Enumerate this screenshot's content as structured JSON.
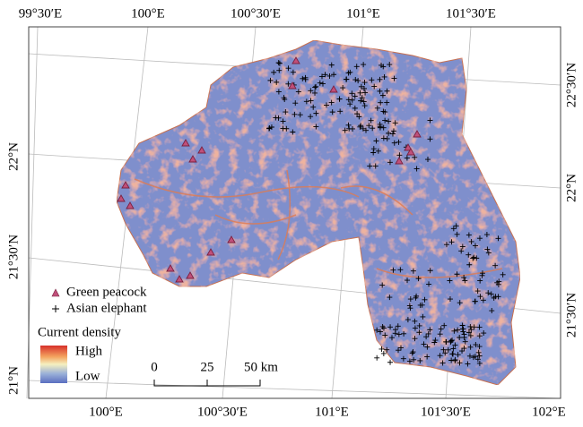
{
  "graticule": {
    "top": [
      "99°30′E",
      "100°E",
      "100°30′E",
      "101°E",
      "101°30′E"
    ],
    "bottom": [
      "100°E",
      "100°30′E",
      "101°E",
      "101°30′E",
      "102°E"
    ],
    "left": [
      "22°N",
      "21°30′N",
      "21°N"
    ],
    "right": [
      "22°30′N",
      "22°N",
      "21°30′N"
    ]
  },
  "legend": {
    "items": [
      "Green peacock",
      "Asian elephant"
    ],
    "density_title": "Current density",
    "density_high": "High",
    "density_low": "Low"
  },
  "scale_bar": {
    "labels": [
      "0",
      "25",
      "50 km"
    ]
  }
}
